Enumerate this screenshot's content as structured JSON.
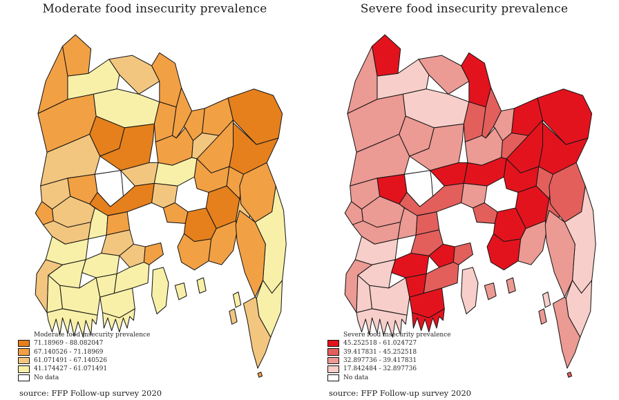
{
  "panels": [
    {
      "title": "Moderate food insecurity prevalence",
      "legend": {
        "title": "Moderate food insecurity prevalence",
        "classes": [
          {
            "label": "71.18969 - 88.082047",
            "color": "#E5801C"
          },
          {
            "label": "67.140526 - 71.18969",
            "color": "#F2A044"
          },
          {
            "label": "61.071491 - 67.140526",
            "color": "#F3C67F"
          },
          {
            "label": "41.174427 - 61.071491",
            "color": "#F8F0A8"
          },
          {
            "label": "No data",
            "color": "#FFFFFF"
          }
        ]
      },
      "source": "source: FFP Follow-up survey 2020",
      "region_classes": {
        "pan": 1,
        "tha": 1,
        "nil": 3,
        "lal": 2,
        "kur": 1,
        "din": 1,
        "ran": 3,
        "gai": 1,
        "nao": 2,
        "joy": 0,
        "bog": 0,
        "jam": 1,
        "she": 1,
        "mym": 1,
        "net": 2,
        "sun": 1,
        "syl": 0,
        "mou": 0,
        "hab": 1,
        "sir": 2,
        "tan": 3,
        "dhk": 1,
        "bra": 1,
        "naw": 2,
        "raj": 1,
        "nat": 4,
        "pab": 0,
        "man": 2,
        "mun": 1,
        "com": 0,
        "chn": 0,
        "fen": 2,
        "lak": 1,
        "noa": 1,
        "kus": 2,
        "meh": 1,
        "jhe": 2,
        "jes": 3,
        "mag": 3,
        "rjb": 1,
        "far": 2,
        "gop": 3,
        "nrl": 3,
        "sat": 2,
        "khu": 3,
        "bag": 3,
        "snd": 3,
        "mad": 2,
        "shp": 1,
        "pir": 3,
        "brl": 3,
        "pat": 3,
        "brg": 3,
        "bho": 3,
        "htl": 3,
        "snp": 3,
        "kha": 1,
        "rng": 3,
        "cht": 1,
        "ban": 3,
        "cox": 2,
        "ktb": 3,
        "mhk": 2,
        "stm": 1
      }
    },
    {
      "title": "Severe food insecurity prevalence",
      "legend": {
        "title": "Severe food insecurity prevalence",
        "classes": [
          {
            "label": "45.252518 - 61.024727",
            "color": "#E3131E"
          },
          {
            "label": "39.417831 - 45.252518",
            "color": "#E35F5C"
          },
          {
            "label": "32.897736 - 39.417831",
            "color": "#EC9A94"
          },
          {
            "label": "17.842484 - 32.897736",
            "color": "#F7CEC9"
          },
          {
            "label": "No data",
            "color": "#FFFFFF"
          }
        ]
      },
      "source": "source: FFP Follow-up survey 2020",
      "region_classes": {
        "pan": 0,
        "tha": 2,
        "nil": 3,
        "lal": 2,
        "kur": 0,
        "din": 2,
        "ran": 3,
        "gai": 1,
        "nao": 2,
        "joy": 2,
        "bog": 2,
        "jam": 1,
        "she": 2,
        "mym": 2,
        "net": 1,
        "sun": 0,
        "syl": 0,
        "mou": 0,
        "hab": 0,
        "sir": 0,
        "tan": 0,
        "dhk": 0,
        "bra": 1,
        "naw": 2,
        "raj": 0,
        "nat": 4,
        "pab": 1,
        "man": 2,
        "mun": 1,
        "com": 0,
        "chn": 0,
        "fen": 1,
        "lak": 0,
        "noa": 2,
        "kus": 2,
        "meh": 2,
        "jhe": 2,
        "jes": 3,
        "mag": 2,
        "rjb": 1,
        "far": 1,
        "gop": 0,
        "nrl": 3,
        "sat": 2,
        "khu": 3,
        "bag": 3,
        "snd": 3,
        "mad": 0,
        "shp": 1,
        "pir": 0,
        "brl": 1,
        "pat": 0,
        "brg": 0,
        "bho": 3,
        "htl": 2,
        "snp": 2,
        "kha": 1,
        "rng": 3,
        "cht": 2,
        "ban": 3,
        "cox": 2,
        "ktb": 3,
        "mhk": 2,
        "stm": 1
      }
    }
  ]
}
